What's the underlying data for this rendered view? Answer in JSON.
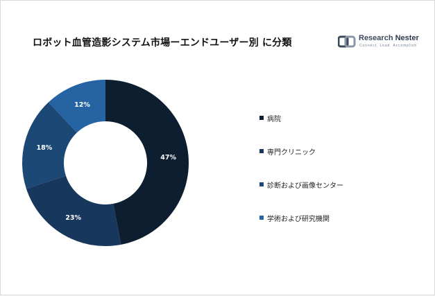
{
  "title": "ロボット血管造影システム市場ーエンドユーザー別 に分類",
  "logo": {
    "name_part1": "Research ",
    "name_part2": "Nester",
    "tagline": "Connect. Lead. Accomplish"
  },
  "chart_data": {
    "type": "pie",
    "donut": true,
    "categories": [
      "病院",
      "専門クリニック",
      "診断および画像センター",
      "学術および研究機関"
    ],
    "values": [
      47,
      23,
      18,
      12
    ],
    "data_labels": [
      "47%",
      "23%",
      "18%",
      "12%"
    ],
    "colors": [
      "#0e1e31",
      "#17375d",
      "#1c4876",
      "#2563a3"
    ],
    "start_angle_deg": 0,
    "direction": "clockwise",
    "legend_position": "right"
  }
}
